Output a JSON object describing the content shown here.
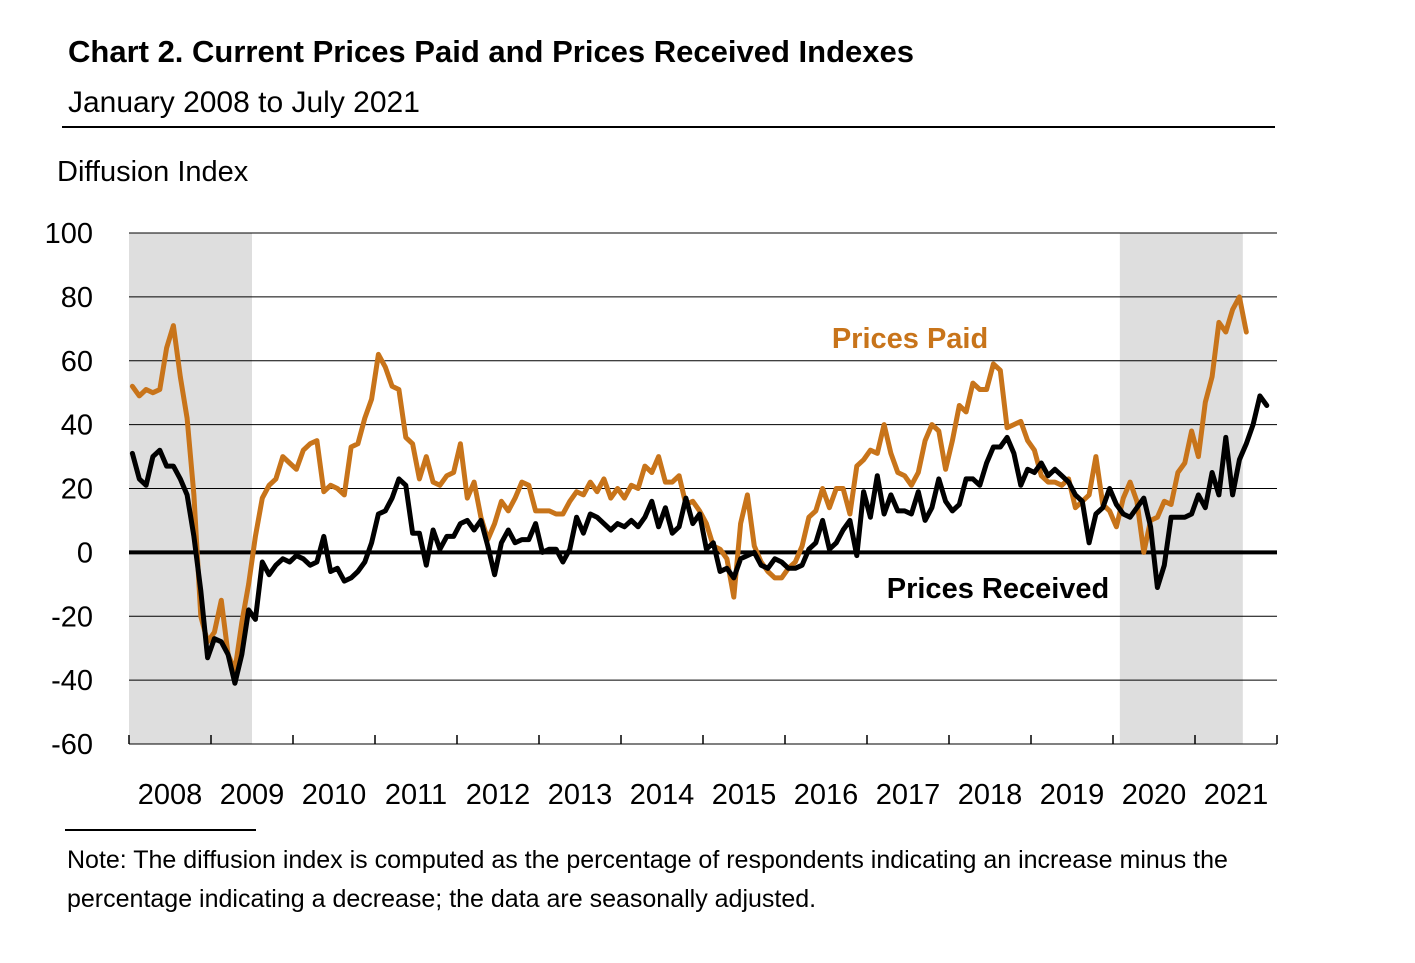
{
  "title": "Chart 2. Current Prices Paid and Prices Received Indexes",
  "subtitle": "January 2008 to July 2021",
  "note": "Note: The diffusion index is computed as the percentage of respondents indicating an increase minus the percentage indicating a decrease; the data are seasonally adjusted.",
  "colors": {
    "prices_paid": "#C8741A",
    "prices_received": "#000000",
    "recession": "#DEDEDE",
    "grid": "#000000"
  },
  "chart_data": {
    "type": "line",
    "ylabel": "Diffusion Index",
    "ylim": [
      -60,
      100
    ],
    "yticks": [
      100,
      80,
      60,
      40,
      20,
      0,
      -20,
      -40,
      -60
    ],
    "xticks": [
      "2008",
      "2009",
      "2010",
      "2011",
      "2012",
      "2013",
      "2014",
      "2015",
      "2016",
      "2017",
      "2018",
      "2019",
      "2020",
      "2021"
    ],
    "x_start": "2008-01",
    "x_frequency": "monthly",
    "grid": true,
    "shaded_periods": [
      [
        "2008-01",
        "2009-06"
      ],
      [
        "2020-02",
        "2021-07"
      ]
    ],
    "series": [
      {
        "name": "Prices Paid",
        "values": [
          52,
          49,
          51,
          50,
          51,
          64,
          71,
          55,
          42,
          18,
          -20,
          -28,
          -25,
          -15,
          -32,
          -37,
          -22,
          -10,
          5,
          17,
          21,
          23,
          30,
          28,
          26,
          32,
          34,
          35,
          19,
          21,
          20,
          18,
          33,
          34,
          42,
          48,
          62,
          58,
          52,
          51,
          36,
          34,
          23,
          30,
          22,
          21,
          24,
          25,
          34,
          17,
          22,
          11,
          4,
          9,
          16,
          13,
          17,
          22,
          21,
          13,
          13,
          13,
          12,
          12,
          16,
          19,
          18,
          22,
          19,
          23,
          17,
          20,
          17,
          21,
          20,
          27,
          25,
          30,
          22,
          22,
          24,
          15,
          16,
          13,
          9,
          2,
          1,
          -2,
          -14,
          9,
          18,
          2,
          -3,
          -6,
          -8,
          -8,
          -5,
          -3,
          2,
          11,
          13,
          20,
          14,
          20,
          20,
          12,
          27,
          29,
          32,
          31,
          40,
          31,
          25,
          24,
          21,
          25,
          35,
          40,
          38,
          26,
          35,
          46,
          44,
          53,
          51,
          51,
          59,
          57,
          39,
          40,
          41,
          35,
          32,
          24,
          22,
          22,
          21,
          23,
          14,
          16,
          18,
          30,
          15,
          13,
          8,
          17,
          22,
          16,
          0,
          10,
          11,
          16,
          15,
          25,
          28,
          38,
          30,
          47,
          55,
          72,
          69,
          76,
          80,
          69
        ]
      },
      {
        "name": "Prices Received",
        "values": [
          31,
          23,
          21,
          30,
          32,
          27,
          27,
          23,
          18,
          5,
          -12,
          -33,
          -27,
          -28,
          -32,
          -41,
          -32,
          -18,
          -21,
          -3,
          -7,
          -4,
          -2,
          -3,
          -1,
          -2,
          -4,
          -3,
          5,
          -6,
          -5,
          -9,
          -8,
          -6,
          -3,
          3,
          12,
          13,
          17,
          23,
          21,
          6,
          6,
          -4,
          7,
          1,
          5,
          5,
          9,
          10,
          7,
          10,
          2,
          -7,
          3,
          7,
          3,
          4,
          4,
          9,
          0,
          1,
          1,
          -3,
          1,
          11,
          6,
          12,
          11,
          9,
          7,
          9,
          8,
          10,
          8,
          11,
          16,
          8,
          14,
          6,
          8,
          17,
          9,
          12,
          1,
          3,
          -6,
          -5,
          -8,
          -2,
          -1,
          0,
          -4,
          -5,
          -2,
          -3,
          -5,
          -5,
          -4,
          1,
          3,
          10,
          1,
          3,
          7,
          10,
          -1,
          19,
          11,
          24,
          12,
          18,
          13,
          13,
          12,
          19,
          10,
          14,
          23,
          16,
          13,
          15,
          23,
          23,
          21,
          28,
          33,
          33,
          36,
          31,
          21,
          26,
          25,
          28,
          24,
          26,
          24,
          22,
          18,
          16,
          3,
          12,
          14,
          20,
          15,
          12,
          11,
          14,
          17,
          8,
          -11,
          -4,
          11,
          11,
          11,
          12,
          18,
          14,
          25,
          18,
          36,
          18,
          29,
          34,
          40,
          49,
          46
        ]
      }
    ]
  }
}
